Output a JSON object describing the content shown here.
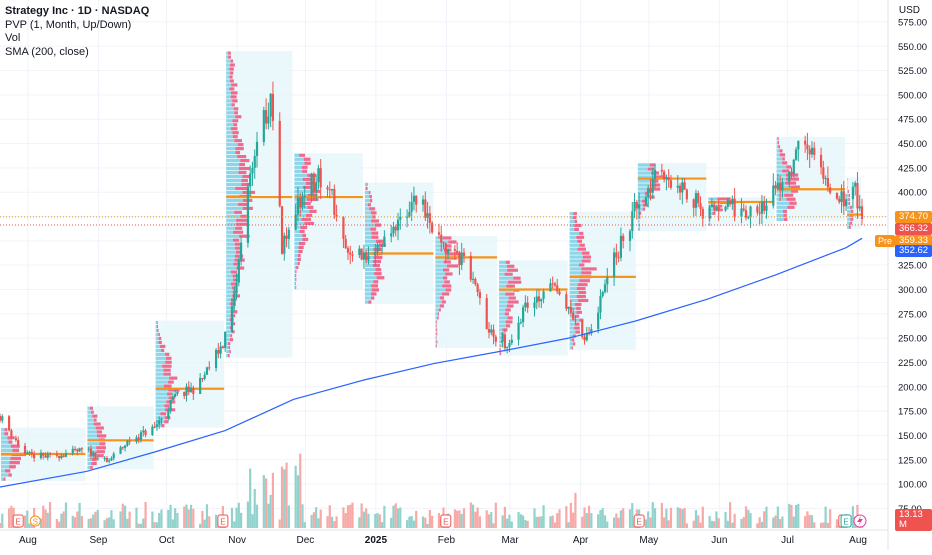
{
  "legend": {
    "symbol": "Strategy Inc · 1D · NASDAQ",
    "pvp": "PVP (1, Month, Up/Down)",
    "vol": "Vol",
    "sma": "SMA (200, close)"
  },
  "currency": "USD",
  "badges": {
    "last": "374.70",
    "close": "366.32",
    "pre_label": "Pre",
    "pre": "359.33",
    "sma": "352.62",
    "volume": "13.13 M"
  },
  "colors": {
    "up": "#26a69a",
    "down": "#ef5350",
    "sma": "#2962ff",
    "poc": "#f7931a",
    "profile_up": "#8dd5e8",
    "profile_down": "#ef6a8c"
  },
  "chart_data": {
    "type": "candlestick",
    "y_ticks": [
      75,
      100,
      125,
      150,
      175,
      200,
      225,
      250,
      275,
      300,
      325,
      350,
      375,
      400,
      425,
      450,
      475,
      500,
      525,
      550,
      575
    ],
    "ylim": [
      70,
      585
    ],
    "x_ticks": [
      "Aug",
      "Sep",
      "Oct",
      "Nov",
      "Dec",
      "2025",
      "Feb",
      "Mar",
      "Apr",
      "May",
      "Jun",
      "Jul",
      "Aug"
    ],
    "monthly_profiles": [
      {
        "month": "Aug",
        "poc": 131,
        "low": 103,
        "high": 158
      },
      {
        "month": "Sep",
        "poc": 145,
        "low": 115,
        "high": 180
      },
      {
        "month": "Oct",
        "poc": 198,
        "low": 158,
        "high": 268
      },
      {
        "month": "Nov",
        "poc": 395,
        "low": 230,
        "high": 545
      },
      {
        "month": "Dec",
        "poc": 395,
        "low": 300,
        "high": 440
      },
      {
        "month": "Jan",
        "poc": 337,
        "low": 285,
        "high": 410
      },
      {
        "month": "Feb",
        "poc": 333,
        "low": 240,
        "high": 355
      },
      {
        "month": "Mar",
        "poc": 300,
        "low": 232,
        "high": 330
      },
      {
        "month": "Apr",
        "poc": 313,
        "low": 238,
        "high": 380
      },
      {
        "month": "May",
        "poc": 414,
        "low": 360,
        "high": 430
      },
      {
        "month": "Jun",
        "poc": 390,
        "low": 365,
        "high": 395
      },
      {
        "month": "Jul",
        "poc": 403,
        "low": 370,
        "high": 457
      },
      {
        "month": "Aug",
        "poc": 377,
        "low": 362,
        "high": 415
      }
    ],
    "sma_200": [
      {
        "date": "2024-07-25",
        "value": 97
      },
      {
        "date": "2024-09-01",
        "value": 113
      },
      {
        "date": "2024-10-01",
        "value": 133
      },
      {
        "date": "2024-11-01",
        "value": 155
      },
      {
        "date": "2024-12-01",
        "value": 187
      },
      {
        "date": "2025-01-01",
        "value": 207
      },
      {
        "date": "2025-02-01",
        "value": 224
      },
      {
        "date": "2025-03-01",
        "value": 236
      },
      {
        "date": "2025-04-01",
        "value": 250
      },
      {
        "date": "2025-05-01",
        "value": 268
      },
      {
        "date": "2025-06-01",
        "value": 290
      },
      {
        "date": "2025-07-01",
        "value": 315
      },
      {
        "date": "2025-08-01",
        "value": 343
      },
      {
        "date": "2025-08-08",
        "value": 352.62
      }
    ],
    "price_path": [
      {
        "date": "2024-07-25",
        "close": 170
      },
      {
        "date": "2024-08-05",
        "close": 130
      },
      {
        "date": "2024-08-15",
        "close": 128
      },
      {
        "date": "2024-09-01",
        "close": 135
      },
      {
        "date": "2024-09-10",
        "close": 122
      },
      {
        "date": "2024-09-20",
        "close": 145
      },
      {
        "date": "2024-10-01",
        "close": 158
      },
      {
        "date": "2024-10-10",
        "close": 190
      },
      {
        "date": "2024-10-20",
        "close": 200
      },
      {
        "date": "2024-10-31",
        "close": 245
      },
      {
        "date": "2024-11-05",
        "close": 290
      },
      {
        "date": "2024-11-12",
        "close": 420
      },
      {
        "date": "2024-11-21",
        "close": 500
      },
      {
        "date": "2024-11-26",
        "close": 345
      },
      {
        "date": "2024-12-05",
        "close": 400
      },
      {
        "date": "2024-12-15",
        "close": 420
      },
      {
        "date": "2024-12-25",
        "close": 330
      },
      {
        "date": "2025-01-05",
        "close": 340
      },
      {
        "date": "2025-01-15",
        "close": 370
      },
      {
        "date": "2025-01-25",
        "close": 395
      },
      {
        "date": "2025-02-05",
        "close": 340
      },
      {
        "date": "2025-02-15",
        "close": 330
      },
      {
        "date": "2025-02-25",
        "close": 255
      },
      {
        "date": "2025-03-05",
        "close": 245
      },
      {
        "date": "2025-03-15",
        "close": 290
      },
      {
        "date": "2025-03-25",
        "close": 305
      },
      {
        "date": "2025-04-05",
        "close": 260
      },
      {
        "date": "2025-04-10",
        "close": 250
      },
      {
        "date": "2025-04-20",
        "close": 325
      },
      {
        "date": "2025-05-01",
        "close": 385
      },
      {
        "date": "2025-05-10",
        "close": 415
      },
      {
        "date": "2025-05-20",
        "close": 410
      },
      {
        "date": "2025-06-01",
        "close": 375
      },
      {
        "date": "2025-06-10",
        "close": 385
      },
      {
        "date": "2025-06-20",
        "close": 380
      },
      {
        "date": "2025-07-01",
        "close": 400
      },
      {
        "date": "2025-07-10",
        "close": 440
      },
      {
        "date": "2025-07-15",
        "close": 450
      },
      {
        "date": "2025-07-25",
        "close": 405
      },
      {
        "date": "2025-08-01",
        "close": 385
      },
      {
        "date": "2025-08-05",
        "close": 405
      },
      {
        "date": "2025-08-08",
        "close": 366
      }
    ],
    "event_markers": [
      {
        "date": "2024-08-02",
        "label": "E"
      },
      {
        "date": "2024-08-06",
        "label": "S"
      },
      {
        "date": "2024-10-31",
        "label": "E"
      },
      {
        "date": "2025-02-06",
        "label": "E"
      },
      {
        "date": "2025-05-02",
        "label": "E"
      },
      {
        "date": "2025-07-31",
        "label": "E"
      },
      {
        "date": "2025-08-01",
        "label": "E"
      }
    ]
  }
}
